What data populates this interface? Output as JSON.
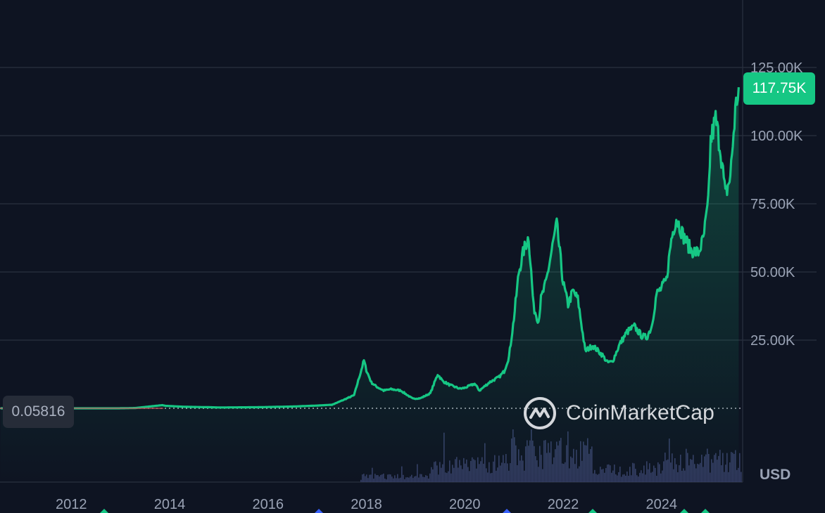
{
  "chart_data": {
    "type": "line",
    "title": "",
    "xlabel": "",
    "ylabel": "",
    "currency": "USD",
    "x_ticks": [
      "2012",
      "2014",
      "2016",
      "2018",
      "2020",
      "2022",
      "2024"
    ],
    "y_ticks": [
      {
        "value": 25000,
        "label": "25.00K"
      },
      {
        "value": 50000,
        "label": "50.00K"
      },
      {
        "value": 75000,
        "label": "75.00K"
      },
      {
        "value": 100000,
        "label": "100.00K"
      },
      {
        "value": 125000,
        "label": "125.00K"
      }
    ],
    "ylim": [
      0,
      150000
    ],
    "xlim": [
      2010.55,
      2025.65
    ],
    "last_price": {
      "value": 117750,
      "label": "117.75K"
    },
    "base_price": {
      "value": 0.05816,
      "label": "0.05816"
    },
    "grid": true,
    "line_color": "#16c784",
    "series": [
      {
        "x": [
          2010.56,
          2011.0,
          2011.45,
          2012.0,
          2012.5,
          2013.0,
          2013.3,
          2013.85,
          2013.92,
          2014.3,
          2014.8,
          2015.0,
          2015.8,
          2016.5,
          2017.0,
          2017.3,
          2017.5,
          2017.75,
          2017.95,
          2018.0,
          2018.1,
          2018.2,
          2018.35,
          2018.5,
          2018.7,
          2018.9,
          2018.95,
          2019.1,
          2019.3,
          2019.45,
          2019.55,
          2019.7,
          2019.9,
          2020.0,
          2020.2,
          2020.3,
          2020.5,
          2020.7,
          2020.8,
          2020.9,
          2021.0,
          2021.1,
          2021.2,
          2021.3,
          2021.4,
          2021.5,
          2021.55,
          2021.65,
          2021.8,
          2021.87,
          2022.0,
          2022.1,
          2022.2,
          2022.3,
          2022.45,
          2022.6,
          2022.8,
          2022.9,
          2023.0,
          2023.15,
          2023.3,
          2023.45,
          2023.6,
          2023.7,
          2023.8,
          2023.9,
          2024.0,
          2024.1,
          2024.2,
          2024.3,
          2024.45,
          2024.6,
          2024.75,
          2024.85,
          2024.95,
          2025.0,
          2025.1,
          2025.2,
          2025.3,
          2025.4,
          2025.5,
          2025.57
        ],
        "y": [
          0.05816,
          30,
          100,
          6,
          8,
          13,
          100,
          1150,
          900,
          550,
          400,
          300,
          400,
          650,
          1000,
          1300,
          2800,
          4800,
          17500,
          14000,
          9500,
          8000,
          6500,
          7000,
          6500,
          4000,
          3500,
          3700,
          5500,
          12500,
          10000,
          8500,
          7200,
          7500,
          9000,
          6500,
          9500,
          11500,
          13500,
          19000,
          33000,
          50000,
          58000,
          63000,
          37000,
          32000,
          40000,
          46000,
          61000,
          67500,
          46000,
          38000,
          43000,
          40000,
          21000,
          23000,
          19500,
          16800,
          17000,
          23500,
          28000,
          30000,
          26500,
          26000,
          30000,
          42000,
          44000,
          47000,
          62000,
          70000,
          63000,
          58000,
          57000,
          62000,
          75000,
          98000,
          106000,
          95000,
          78000,
          85000,
          109000,
          117750
        ]
      }
    ]
  }
}
